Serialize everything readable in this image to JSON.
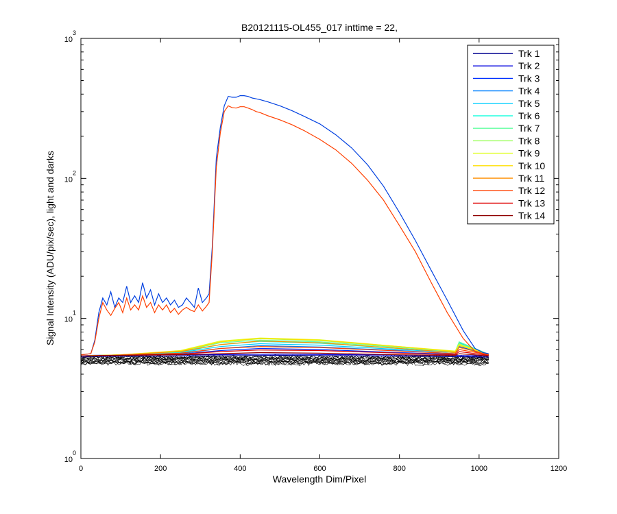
{
  "chart_data": {
    "type": "line",
    "title": "B20121115-OL455_017 inttime = 22,",
    "xlabel": "Wavelength Dim/Pixel",
    "ylabel": "Signal Intensity (ADU/pix/sec), light and darks",
    "xlim": [
      0,
      1200
    ],
    "ylim": [
      1,
      1000
    ],
    "yscale": "log",
    "grid": false,
    "legend_position": "top-right",
    "x_ticks": [
      "0",
      "200",
      "400",
      "600",
      "800",
      "1000",
      "1200"
    ],
    "y_ticks": [
      {
        "base": "10",
        "exp": "0"
      },
      {
        "base": "10",
        "exp": "1"
      },
      {
        "base": "10",
        "exp": "2"
      },
      {
        "base": "10",
        "exp": "3"
      }
    ],
    "series": [
      {
        "name": "Trk 1",
        "color": "#00008f",
        "x": [
          0,
          30,
          300,
          500,
          700,
          900,
          1024
        ],
        "y": [
          5.3,
          5.35,
          5.4,
          5.45,
          5.4,
          5.35,
          5.3
        ]
      },
      {
        "name": "Trk 2",
        "color": "#0000df",
        "x": [
          0,
          30,
          300,
          500,
          700,
          900,
          1024
        ],
        "y": [
          5.4,
          5.45,
          5.5,
          5.55,
          5.5,
          5.45,
          5.4
        ]
      },
      {
        "name": "Trk 3",
        "color": "#0030ff",
        "x": [
          0,
          100,
          250,
          350,
          450,
          600,
          800,
          940,
          950,
          1024
        ],
        "y": [
          5.4,
          5.45,
          5.55,
          5.9,
          6.1,
          6.0,
          5.7,
          5.55,
          6.3,
          5.5
        ]
      },
      {
        "name": "Trk 4",
        "color": "#0080ff",
        "x": [
          0,
          100,
          250,
          350,
          450,
          600,
          800,
          940,
          950,
          1024
        ],
        "y": [
          5.4,
          5.45,
          5.6,
          6.1,
          6.4,
          6.25,
          5.9,
          5.6,
          6.5,
          5.5
        ]
      },
      {
        "name": "Trk 5",
        "color": "#00cfff",
        "x": [
          0,
          100,
          250,
          350,
          450,
          600,
          800,
          940,
          950,
          1024
        ],
        "y": [
          5.4,
          5.5,
          5.7,
          6.3,
          6.6,
          6.45,
          6.0,
          5.7,
          6.7,
          5.5
        ]
      },
      {
        "name": "Trk 6",
        "color": "#20ffdf",
        "x": [
          0,
          100,
          250,
          350,
          450,
          600,
          800,
          940,
          950,
          1024
        ],
        "y": [
          5.4,
          5.5,
          5.75,
          6.5,
          6.85,
          6.65,
          6.1,
          5.75,
          6.8,
          5.55
        ]
      },
      {
        "name": "Trk 7",
        "color": "#60ff9f",
        "x": [
          0,
          100,
          250,
          350,
          450,
          600,
          800,
          940,
          950,
          1024
        ],
        "y": [
          5.4,
          5.5,
          5.8,
          6.7,
          7.0,
          6.8,
          6.2,
          5.8,
          6.8,
          5.55
        ]
      },
      {
        "name": "Trk 8",
        "color": "#9fff60",
        "x": [
          0,
          100,
          250,
          350,
          450,
          600,
          800,
          940,
          950,
          1024
        ],
        "y": [
          5.4,
          5.5,
          5.85,
          6.8,
          7.15,
          6.95,
          6.25,
          5.8,
          6.6,
          5.55
        ]
      },
      {
        "name": "Trk 9",
        "color": "#dfff20",
        "x": [
          0,
          100,
          250,
          350,
          450,
          600,
          800,
          940,
          950,
          1024
        ],
        "y": [
          5.4,
          5.5,
          5.9,
          6.9,
          7.25,
          7.05,
          6.3,
          5.85,
          6.5,
          5.55
        ]
      },
      {
        "name": "Trk 10",
        "color": "#ffdf00",
        "x": [
          0,
          100,
          250,
          350,
          450,
          600,
          800,
          940,
          950,
          1024
        ],
        "y": [
          5.4,
          5.5,
          5.85,
          6.8,
          7.2,
          7.0,
          6.3,
          5.8,
          6.4,
          5.55
        ]
      },
      {
        "name": "Trk 11",
        "color": "#ff8f00",
        "x": [
          0,
          100,
          250,
          350,
          450,
          600,
          800,
          940,
          950,
          1024
        ],
        "y": [
          5.4,
          5.5,
          5.8,
          6.5,
          6.9,
          6.7,
          6.1,
          5.7,
          6.2,
          5.5
        ]
      },
      {
        "name": "Trk 12",
        "color": "#ff4000",
        "x": [
          0,
          100,
          250,
          350,
          450,
          600,
          800,
          940,
          950,
          1024
        ],
        "y": [
          5.4,
          5.45,
          5.65,
          6.1,
          6.3,
          6.2,
          5.85,
          5.6,
          6.0,
          5.5
        ]
      },
      {
        "name": "Trk 13",
        "color": "#df0000",
        "x": [
          0,
          100,
          250,
          350,
          450,
          600,
          800,
          940,
          950,
          1024
        ],
        "y": [
          5.4,
          5.45,
          5.55,
          5.8,
          5.95,
          5.9,
          5.65,
          5.5,
          5.8,
          5.45
        ]
      },
      {
        "name": "Trk 14",
        "color": "#8f0000",
        "x": [
          0,
          100,
          250,
          350,
          450,
          600,
          800,
          940,
          950,
          1024
        ],
        "y": [
          5.4,
          5.45,
          5.5,
          5.6,
          5.7,
          5.65,
          5.5,
          5.45,
          5.6,
          5.4
        ]
      },
      {
        "name": "",
        "color": "#0040e0",
        "x": [
          0,
          25,
          35,
          45,
          55,
          65,
          75,
          85,
          95,
          105,
          115,
          125,
          135,
          145,
          155,
          165,
          175,
          185,
          195,
          205,
          215,
          225,
          235,
          245,
          255,
          265,
          275,
          285,
          295,
          305,
          315,
          322,
          330,
          340,
          350,
          360,
          370,
          380,
          390,
          400,
          410,
          420,
          430,
          440,
          450,
          470,
          500,
          530,
          560,
          600,
          640,
          680,
          720,
          760,
          800,
          840,
          880,
          920,
          960,
          990,
          1010,
          1024
        ],
        "y": [
          5.5,
          5.6,
          7,
          11,
          14,
          12.5,
          15.5,
          12,
          14,
          13,
          17,
          13,
          14.5,
          13,
          18,
          14,
          16,
          12.5,
          15,
          13,
          14,
          12.5,
          13.5,
          12,
          12.5,
          14,
          13,
          12,
          16.5,
          13,
          14,
          15,
          33,
          140,
          230,
          330,
          385,
          380,
          380,
          390,
          390,
          385,
          375,
          370,
          365,
          352,
          330,
          305,
          278,
          245,
          205,
          165,
          125,
          88,
          57,
          36,
          22,
          13.5,
          8.2,
          6.1,
          5.7,
          5.6
        ]
      },
      {
        "name": "",
        "color": "#ff4000",
        "x": [
          0,
          25,
          35,
          45,
          55,
          65,
          75,
          85,
          95,
          105,
          115,
          125,
          135,
          145,
          155,
          165,
          175,
          185,
          195,
          205,
          215,
          225,
          235,
          245,
          255,
          265,
          275,
          285,
          295,
          305,
          315,
          322,
          330,
          340,
          350,
          360,
          370,
          380,
          390,
          400,
          410,
          420,
          430,
          440,
          450,
          470,
          500,
          530,
          560,
          600,
          640,
          680,
          720,
          760,
          800,
          840,
          880,
          920,
          960,
          990,
          1010,
          1024
        ],
        "y": [
          5.5,
          5.6,
          6.8,
          10,
          13,
          11.5,
          10.5,
          11.8,
          13,
          11,
          14,
          11.5,
          12.5,
          11.5,
          14.5,
          12,
          13,
          11,
          12.5,
          11.5,
          12.5,
          11,
          11.8,
          10.7,
          11.5,
          12,
          11.5,
          11.2,
          12.5,
          11.3,
          12.2,
          13,
          30,
          120,
          210,
          300,
          330,
          320,
          318,
          325,
          325,
          318,
          310,
          300,
          295,
          280,
          262,
          242,
          220,
          190,
          160,
          128,
          97,
          70,
          46,
          30,
          18,
          11,
          7.2,
          5.8,
          5.6,
          5.5
        ]
      }
    ]
  }
}
